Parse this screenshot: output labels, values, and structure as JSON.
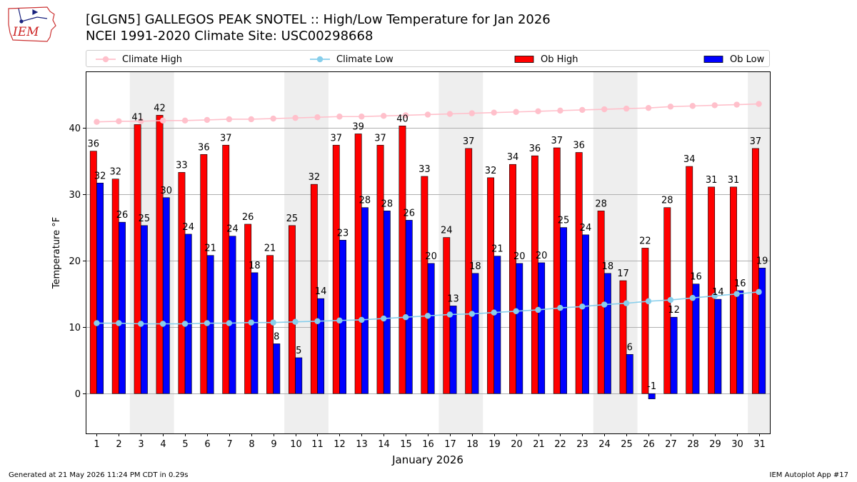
{
  "header": {
    "logo_text": "IEM",
    "title_line1": "[GLGN5] GALLEGOS PEAK SNOTEL :: High/Low Temperature for Jan 2026",
    "title_line2": "NCEI 1991-2020 Climate Site: USC00298668"
  },
  "legend": {
    "placement": "top",
    "entries": [
      {
        "label": "Climate High",
        "color": "#ffc0cb",
        "kind": "line-marker"
      },
      {
        "label": "Climate Low",
        "color": "#87ceeb",
        "kind": "line-marker"
      },
      {
        "label": "Ob High",
        "color": "#ff0000",
        "kind": "bar"
      },
      {
        "label": "Ob Low",
        "color": "#0000ff",
        "kind": "bar"
      }
    ]
  },
  "footer": {
    "left": "Generated at 21 May 2026 11:24 PM CDT in 0.29s",
    "right": "IEM Autoplot App #17"
  },
  "chart_data": {
    "type": "bar",
    "xlabel": "January 2026",
    "ylabel": "Temperature °F",
    "x": [
      1,
      2,
      3,
      4,
      5,
      6,
      7,
      8,
      9,
      10,
      11,
      12,
      13,
      14,
      15,
      16,
      17,
      18,
      19,
      20,
      21,
      22,
      23,
      24,
      25,
      26,
      27,
      28,
      29,
      30,
      31
    ],
    "xlim": [
      0.5,
      31.5
    ],
    "ylim": [
      -6,
      48.5
    ],
    "yticks": [
      0,
      10,
      20,
      30,
      40
    ],
    "grid": "horizontal",
    "weekend_shading": [
      [
        3,
        4
      ],
      [
        10,
        11
      ],
      [
        17,
        18
      ],
      [
        24,
        25
      ],
      [
        31,
        31
      ]
    ],
    "series": [
      {
        "name": "Ob High",
        "type": "bar",
        "color": "#ff0000",
        "values": [
          36.5,
          32.3,
          40.5,
          41.9,
          33.3,
          36.0,
          37.4,
          25.5,
          20.8,
          25.3,
          31.5,
          37.4,
          39.1,
          37.4,
          40.3,
          32.7,
          23.5,
          36.9,
          32.5,
          34.5,
          35.8,
          37.0,
          36.3,
          27.5,
          17.0,
          21.9,
          28.0,
          34.2,
          31.1,
          31.1,
          36.9
        ],
        "labels": [
          "36",
          "32",
          "41",
          "42",
          "33",
          "36",
          "37",
          "26",
          "21",
          "25",
          "32",
          "37",
          "39",
          "37",
          "40",
          "33",
          "24",
          "37",
          "32",
          "34",
          "36",
          "37",
          "36",
          "28",
          "17",
          "22",
          "28",
          "34",
          "31",
          "31",
          "37"
        ]
      },
      {
        "name": "Ob Low",
        "type": "bar",
        "color": "#0000ff",
        "values": [
          31.7,
          25.8,
          25.3,
          29.5,
          24.0,
          20.8,
          23.7,
          18.2,
          7.5,
          5.4,
          14.3,
          23.1,
          28.0,
          27.5,
          26.1,
          19.6,
          13.2,
          18.1,
          20.7,
          19.6,
          19.7,
          25.0,
          23.9,
          18.1,
          5.9,
          -0.8,
          11.5,
          16.5,
          14.2,
          15.5,
          18.9
        ],
        "labels": [
          "32",
          "26",
          "25",
          "30",
          "24",
          "21",
          "24",
          "18",
          "8",
          "5",
          "14",
          "23",
          "28",
          "28",
          "26",
          "20",
          "13",
          "18",
          "21",
          "20",
          "20",
          "25",
          "24",
          "18",
          "6",
          "-1",
          "12",
          "16",
          "14",
          "16",
          "19"
        ]
      },
      {
        "name": "Climate High",
        "type": "line",
        "color": "#ffc0cb",
        "values": [
          40.9,
          41.0,
          41.0,
          41.1,
          41.1,
          41.2,
          41.3,
          41.3,
          41.4,
          41.5,
          41.6,
          41.7,
          41.7,
          41.8,
          41.9,
          42.0,
          42.1,
          42.2,
          42.3,
          42.4,
          42.5,
          42.6,
          42.7,
          42.8,
          42.9,
          43.0,
          43.2,
          43.3,
          43.4,
          43.5,
          43.6
        ]
      },
      {
        "name": "Climate Low",
        "type": "line",
        "color": "#87ceeb",
        "values": [
          10.6,
          10.6,
          10.5,
          10.5,
          10.5,
          10.6,
          10.6,
          10.7,
          10.7,
          10.8,
          10.9,
          11.0,
          11.1,
          11.3,
          11.5,
          11.7,
          11.9,
          12.0,
          12.2,
          12.4,
          12.6,
          12.9,
          13.1,
          13.4,
          13.6,
          13.9,
          14.1,
          14.4,
          14.7,
          15.0,
          15.3
        ]
      }
    ]
  }
}
